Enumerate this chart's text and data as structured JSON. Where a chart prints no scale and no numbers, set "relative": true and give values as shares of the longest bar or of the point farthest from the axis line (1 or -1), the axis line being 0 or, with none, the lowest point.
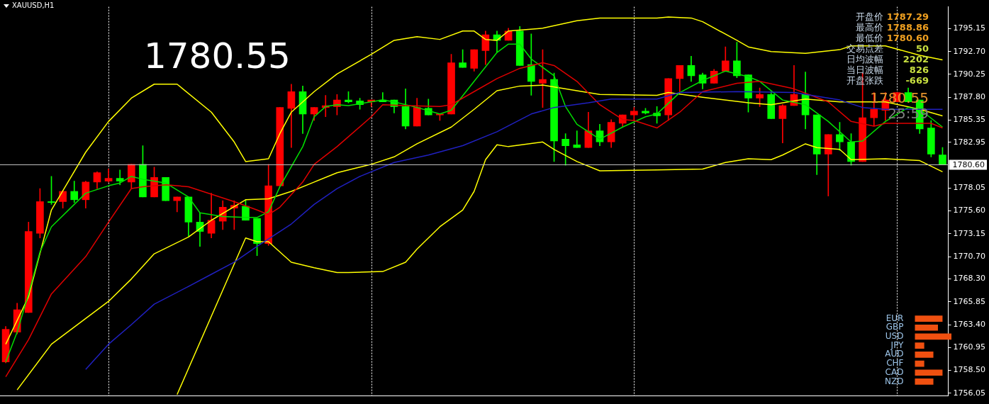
{
  "chart_data": [
    {
      "type": "candlestick",
      "title": "XAUUSD,H1",
      "grid": "x",
      "categories": [
        null,
        null,
        null,
        null,
        null,
        null,
        null,
        null,
        null,
        null,
        null,
        null,
        null,
        null,
        null,
        null,
        null,
        null,
        null,
        null,
        null,
        null,
        null,
        null,
        null,
        null,
        null,
        null,
        null,
        null,
        null,
        null,
        null,
        null,
        null,
        null,
        null,
        null,
        null,
        null,
        null,
        null,
        null,
        null,
        null,
        null,
        null,
        null,
        null,
        null,
        null,
        null,
        null,
        null,
        null,
        null,
        null,
        null,
        null,
        null,
        null,
        null,
        null,
        null,
        null,
        null,
        null,
        null,
        null,
        null,
        null,
        null,
        null,
        null,
        null,
        null,
        null,
        null,
        null,
        null,
        null,
        null,
        null
      ],
      "ohlc": [
        [
          1759.4,
          1763.2,
          1759.3,
          1762.9
        ],
        [
          1762.6,
          1765.7,
          1762.4,
          1765.0
        ],
        [
          1764.7,
          1774.4,
          1764.7,
          1773.4
        ],
        [
          1773.2,
          1778.0,
          1772.7,
          1776.6
        ],
        [
          1776.6,
          1779.3,
          1776.3,
          1776.5
        ],
        [
          1776.6,
          1777.8,
          1775.9,
          1777.7
        ],
        [
          1777.7,
          1778.8,
          1776.5,
          1776.8
        ],
        [
          1776.8,
          1778.8,
          1775.9,
          1778.7
        ],
        [
          1778.7,
          1779.8,
          1778.0,
          1779.7
        ],
        [
          1778.8,
          1780.1,
          1778.7,
          1779.1
        ],
        [
          1779.1,
          1780.0,
          1778.4,
          1778.8
        ],
        [
          1778.7,
          1780.6,
          1778.0,
          1780.6
        ],
        [
          1780.6,
          1782.6,
          1777.1,
          1777.1
        ],
        [
          1777.1,
          1780.3,
          1777.1,
          1779.2
        ],
        [
          1779.2,
          1779.2,
          1776.7,
          1776.7
        ],
        [
          1776.7,
          1777.1,
          1775.5,
          1777.1
        ],
        [
          1777.1,
          1777.1,
          1772.9,
          1774.4
        ],
        [
          1774.4,
          1775.4,
          1771.8,
          1773.4
        ],
        [
          1773.2,
          1777.5,
          1772.7,
          1774.6
        ],
        [
          1774.5,
          1776.7,
          1773.6,
          1776.0
        ],
        [
          1775.9,
          1776.7,
          1773.6,
          1776.2
        ],
        [
          1776.1,
          1776.8,
          1774.6,
          1774.6
        ],
        [
          1774.8,
          1774.8,
          1770.8,
          1772.1
        ],
        [
          1772.1,
          1780.6,
          1771.9,
          1778.3
        ],
        [
          1778.3,
          1786.7,
          1778.3,
          1786.7
        ],
        [
          1786.6,
          1789.2,
          1782.4,
          1788.4
        ],
        [
          1788.4,
          1789.0,
          1783.9,
          1786.0
        ],
        [
          1786.0,
          1786.7,
          1785.3,
          1786.7
        ],
        [
          1786.7,
          1788.0,
          1785.7,
          1786.9
        ],
        [
          1786.8,
          1788.1,
          1785.9,
          1787.5
        ],
        [
          1787.5,
          1788.4,
          1787.2,
          1787.3
        ],
        [
          1787.4,
          1787.7,
          1786.5,
          1787.0
        ],
        [
          1787.3,
          1787.5,
          1786.8,
          1787.5
        ],
        [
          1787.5,
          1788.3,
          1787.3,
          1787.3
        ],
        [
          1787.5,
          1787.5,
          1786.1,
          1786.8
        ],
        [
          1786.8,
          1788.7,
          1784.4,
          1784.7
        ],
        [
          1784.7,
          1787.7,
          1784.7,
          1786.7
        ],
        [
          1786.6,
          1787.6,
          1785.9,
          1785.9
        ],
        [
          1785.9,
          1786.0,
          1785.3,
          1786.0
        ],
        [
          1786.0,
          1792.4,
          1786.0,
          1791.5
        ],
        [
          1791.5,
          1792.9,
          1791.0,
          1791.0
        ],
        [
          1790.9,
          1792.9,
          1790.6,
          1792.9
        ],
        [
          1792.8,
          1794.9,
          1791.3,
          1794.5
        ],
        [
          1794.5,
          1794.9,
          1792.6,
          1793.9
        ],
        [
          1793.9,
          1795.2,
          1793.9,
          1794.9
        ],
        [
          1794.9,
          1795.4,
          1791.2,
          1791.2
        ],
        [
          1791.3,
          1794.6,
          1788.0,
          1789.5
        ],
        [
          1789.3,
          1792.9,
          1786.7,
          1789.7
        ],
        [
          1789.7,
          1790.4,
          1780.9,
          1783.1
        ],
        [
          1783.3,
          1783.9,
          1780.5,
          1782.6
        ],
        [
          1782.7,
          1784.2,
          1782.4,
          1782.4
        ],
        [
          1782.4,
          1786.2,
          1782.4,
          1784.2
        ],
        [
          1784.2,
          1784.9,
          1782.6,
          1783.0
        ],
        [
          1783.0,
          1785.4,
          1782.4,
          1785.1
        ],
        [
          1785.0,
          1785.9,
          1784.6,
          1785.9
        ],
        [
          1785.9,
          1786.7,
          1785.4,
          1786.3
        ],
        [
          1786.3,
          1786.6,
          1786.0,
          1786.1
        ],
        [
          1786.1,
          1786.8,
          1785.0,
          1785.8
        ],
        [
          1785.9,
          1789.8,
          1785.3,
          1789.8
        ],
        [
          1789.8,
          1791.2,
          1788.3,
          1791.2
        ],
        [
          1791.2,
          1792.2,
          1789.5,
          1790.1
        ],
        [
          1790.2,
          1790.4,
          1788.7,
          1789.3
        ],
        [
          1789.3,
          1790.8,
          1789.3,
          1790.6
        ],
        [
          1790.6,
          1793.2,
          1790.6,
          1791.7
        ],
        [
          1791.7,
          1793.7,
          1789.9,
          1790.1
        ],
        [
          1790.2,
          1790.2,
          1786.2,
          1787.7
        ],
        [
          1787.7,
          1788.8,
          1786.8,
          1788.1
        ],
        [
          1788.1,
          1788.4,
          1785.5,
          1785.5
        ],
        [
          1785.5,
          1787.0,
          1782.9,
          1786.9
        ],
        [
          1786.9,
          1791.2,
          1786.9,
          1788.1
        ],
        [
          1788.1,
          1790.5,
          1784.4,
          1785.9
        ],
        [
          1785.9,
          1785.9,
          1779.5,
          1781.7
        ],
        [
          1781.7,
          1783.8,
          1777.2,
          1783.8
        ],
        [
          1783.8,
          1785.1,
          1782.1,
          1783.0
        ],
        [
          1783.0,
          1783.9,
          1780.5,
          1780.9
        ],
        [
          1780.9,
          1790.4,
          1780.9,
          1785.6
        ],
        [
          1785.6,
          1788.3,
          1784.7,
          1786.5
        ],
        [
          1786.4,
          1788.3,
          1785.3,
          1787.5
        ],
        [
          1787.3,
          1788.3,
          1787.3,
          1788.3
        ],
        [
          1788.3,
          1788.8,
          1787.3,
          1787.3
        ],
        [
          1787.5,
          1787.5,
          1783.9,
          1784.4
        ],
        [
          1784.5,
          1785.3,
          1781.4,
          1781.7
        ],
        [
          1781.6,
          1782.4,
          1780.6,
          1780.6
        ]
      ],
      "colors": [
        "#ff0000",
        "#ff0000",
        "#ff0000",
        "#ff0000",
        "#00ff00",
        "#ff0000",
        "#00ff00",
        "#ff0000",
        "#ff0000",
        "#ff0000",
        "#00ff00",
        "#ff0000",
        "#00ff00",
        "#ff0000",
        "#00ff00",
        "#ff0000",
        "#00ff00",
        "#00ff00",
        "#ff0000",
        "#ff0000",
        "#ff0000",
        "#00ff00",
        "#00ff00",
        "#ff0000",
        "#ff0000",
        "#ff0000",
        "#00ff00",
        "#ff0000",
        "#ff0000",
        "#ff0000",
        "#00ff00",
        "#00ff00",
        "#ff0000",
        "#00ff00",
        "#00ff00",
        "#00ff00",
        "#ff0000",
        "#00ff00",
        "#ff0000",
        "#ff0000",
        "#00ff00",
        "#ff0000",
        "#ff0000",
        "#00ff00",
        "#ff0000",
        "#00ff00",
        "#00ff00",
        "#ff0000",
        "#00ff00",
        "#00ff00",
        "#00ff00",
        "#ff0000",
        "#00ff00",
        "#ff0000",
        "#ff0000",
        "#ff0000",
        "#00ff00",
        "#00ff00",
        "#ff0000",
        "#ff0000",
        "#00ff00",
        "#00ff00",
        "#ff0000",
        "#ff0000",
        "#00ff00",
        "#00ff00",
        "#ff0000",
        "#00ff00",
        "#ff0000",
        "#ff0000",
        "#00ff00",
        "#00ff00",
        "#ff0000",
        "#00ff00",
        "#00ff00",
        "#ff0000",
        "#ff0000",
        "#ff0000",
        "#ff0000",
        "#00ff00",
        "#00ff00",
        "#00ff00",
        "#00ff00"
      ],
      "series": [
        {
          "type": "line",
          "color": "#2020c0",
          "values": [
            null,
            null,
            null,
            null,
            null,
            null,
            null,
            1758.6,
            null,
            1761.3,
            null,
            1763.4,
            null,
            1765.6,
            null,
            null,
            1767.5,
            null,
            1768.8,
            null,
            1770.1,
            null,
            1771.8,
            null,
            null,
            1774.2,
            null,
            1776.3,
            null,
            1778.0,
            null,
            1779.3,
            null,
            null,
            1780.8,
            null,
            null,
            1781.6,
            null,
            null,
            1782.6,
            null,
            null,
            1784.1,
            null,
            null,
            1786.0,
            null,
            1786.7,
            null,
            null,
            1787.2,
            null,
            1787.6,
            null,
            null,
            null,
            1787.6,
            null,
            1788.3,
            null,
            null,
            null,
            null,
            1788.4,
            null,
            null,
            null,
            null,
            1788.3,
            null,
            null,
            null,
            1787.5,
            null,
            1786.7,
            null,
            1786.5,
            null,
            null,
            null,
            null,
            1786.5
          ]
        },
        {
          "type": "line",
          "color": "#e00000",
          "values": [
            1757.8,
            null,
            1761.8,
            null,
            1766.7,
            null,
            null,
            1770.7,
            null,
            1774.4,
            null,
            1778.0,
            1778.2,
            null,
            1778.4,
            null,
            1778.2,
            null,
            1777.4,
            null,
            1776.6,
            null,
            1775.7,
            1775.2,
            1776.0,
            null,
            1778.7,
            1780.6,
            null,
            1782.5,
            null,
            null,
            1785.7,
            1787.0,
            null,
            1786.9,
            null,
            null,
            1786.8,
            1787.0,
            null,
            1788.4,
            null,
            1789.8,
            null,
            1790.9,
            null,
            1791.5,
            1791.2,
            null,
            1789.5,
            null,
            1787.0,
            null,
            1785.4,
            1785.3,
            null,
            1784.5,
            null,
            1786.2,
            null,
            1788.4,
            null,
            null,
            1789.3,
            null,
            1789.5,
            null,
            null,
            1788.7,
            null,
            null,
            1787.3,
            null,
            1785.2,
            null,
            1784.7,
            1785.0,
            null,
            null,
            null,
            1785.0,
            1784.5
          ]
        },
        {
          "type": "line",
          "color": "#00e000",
          "values": [
            1759.4,
            1762.6,
            1766.7,
            1771.2,
            1773.9,
            null,
            1776.3,
            1777.5,
            null,
            1778.3,
            1778.6,
            1779.3,
            1779.0,
            null,
            1778.6,
            null,
            1777.1,
            1775.4,
            null,
            1775.0,
            null,
            1774.9,
            1774.9,
            1775.5,
            1778.2,
            null,
            1782.5,
            1785.7,
            1786.8,
            1787.0,
            1786.9,
            null,
            null,
            1787.5,
            1787.3,
            null,
            1786.7,
            null,
            1786.0,
            1786.4,
            null,
            1789.5,
            null,
            1792.6,
            1793.5,
            1793.5,
            1791.9,
            null,
            1790.1,
            1786.8,
            1784.9,
            1784.1,
            1783.3,
            null,
            1784.6,
            null,
            1785.7,
            1786.0,
            null,
            1788.3,
            null,
            1789.6,
            null,
            1790.6,
            null,
            1790.0,
            1789.5,
            null,
            1787.5,
            null,
            1787.0,
            null,
            1785.2,
            null,
            1783.0,
            1783.1,
            null,
            1785.2,
            null,
            1786.7,
            1786.5,
            null,
            1784.6
          ]
        },
        {
          "type": "line",
          "color": "#ffff00",
          "values": [
            1761.3,
            null,
            1766.4,
            null,
            1775.7,
            null,
            null,
            1781.9,
            null,
            1785.2,
            null,
            1787.7,
            null,
            1789.2,
            null,
            1789.2,
            null,
            null,
            1786.2,
            null,
            1783.0,
            1780.9,
            null,
            1781.2,
            1783.9,
            1786.2,
            null,
            1788.4,
            null,
            1790.3,
            null,
            null,
            1792.4,
            null,
            1793.9,
            null,
            1794.3,
            null,
            1794.0,
            null,
            1794.9,
            1794.9,
            1794.0,
            1793.9,
            1794.9,
            null,
            null,
            1795.2,
            null,
            null,
            1796.0,
            null,
            1796.3,
            null,
            null,
            null,
            null,
            1796.3,
            1796.4,
            null,
            1796.3,
            1795.9,
            null,
            null,
            1793.9,
            1793.2,
            null,
            1792.7,
            null,
            null,
            1792.5,
            null,
            null,
            1792.9,
            1793.3,
            null,
            null,
            1793.3,
            null,
            null,
            1792.3,
            null,
            1791.8
          ]
        },
        {
          "type": "line",
          "color": "#ffff00",
          "values": [
            null,
            1756.4,
            null,
            null,
            1761.3,
            null,
            null,
            null,
            null,
            1765.9,
            null,
            1768.3,
            null,
            1771.0,
            null,
            null,
            1772.8,
            null,
            1774.6,
            null,
            null,
            1776.8,
            null,
            1776.9,
            null,
            1777.7,
            null,
            1778.7,
            null,
            1779.7,
            null,
            1780.3,
            1780.6,
            null,
            1781.4,
            null,
            1782.8,
            null,
            null,
            1784.6,
            null,
            1786.5,
            null,
            1788.5,
            null,
            1789.0,
            null,
            1789.1,
            null,
            null,
            1788.5,
            null,
            1788.1,
            null,
            null,
            null,
            null,
            1788.0,
            1788.3,
            null,
            null,
            1787.8,
            null,
            null,
            null,
            1787.2,
            null,
            1787.0,
            null,
            null,
            1787.6,
            null,
            null,
            1787.3,
            null,
            null,
            null,
            1787.3,
            null,
            null,
            1786.5,
            null,
            1785.8
          ]
        },
        {
          "type": "line",
          "color": "#ffff00",
          "values": [
            null,
            null,
            null,
            null,
            null,
            null,
            null,
            null,
            null,
            null,
            null,
            null,
            null,
            null,
            null,
            1755.9,
            null,
            null,
            null,
            null,
            null,
            1772.7,
            1772.3,
            1772.3,
            null,
            1770.1,
            null,
            1769.5,
            null,
            1769.0,
            1769.0,
            null,
            null,
            1769.1,
            null,
            1770.1,
            1771.5,
            null,
            1773.9,
            null,
            1775.7,
            1777.7,
            1781.1,
            1782.7,
            1782.5,
            null,
            null,
            1783.0,
            1782.2,
            null,
            1780.9,
            null,
            1779.9,
            null,
            null,
            null,
            null,
            1780.0,
            null,
            null,
            null,
            1780.1,
            null,
            1780.8,
            null,
            1781.2,
            null,
            1781.1,
            1781.6,
            null,
            1782.8,
            1782.4,
            null,
            1782.2,
            1781.1,
            null,
            null,
            1781.2,
            null,
            null,
            1781.0,
            null,
            1779.8
          ]
        }
      ],
      "marker": "none",
      "ylim": [
        1755.8,
        1797.5
      ],
      "yticks": [
        1795.15,
        {
          "value": 1792.7,
          "label": "1792.70"
        },
        1790.25,
        {
          "value": 1787.8,
          "label": "1787.80"
        },
        1785.35,
        1782.95,
        1778.05,
        {
          "value": 1775.6,
          "label": "1775.60"
        },
        1773.15,
        {
          "value": 1770.7,
          "label": "1770.70"
        },
        {
          "value": 1768.3,
          "label": "1768.30"
        },
        1765.85,
        {
          "value": 1763.4,
          "label": "1763.40"
        },
        1760.95,
        {
          "value": 1758.5,
          "label": "1758.50"
        },
        1756.05
      ],
      "tick_labels": "y",
      "ref_lines": [
        {
          "axis": "y",
          "value": 1780.6,
          "label": "1780.60",
          "color": "#c0c0c0"
        }
      ],
      "annotations": [
        "1780.55",
        "开盘价 1787.29",
        "最高价 1788.86",
        "最低价 1780.60",
        "交易点差 50",
        "日均波幅 2202",
        "当日波幅 826",
        "开盘张跌 -669",
        "1780.55",
        "25:59"
      ]
    },
    {
      "type": "bar",
      "orientation": "horizontal",
      "relative": true,
      "categories": [
        "EUR",
        "GBP",
        "USD",
        "JPY",
        "AUD",
        "CHF",
        "CAD",
        "NZD"
      ],
      "values": [
        0.75,
        0.625,
        1,
        0.25,
        0.5,
        0.25,
        0.75,
        0.5
      ],
      "color": "#f05010"
    }
  ]
}
